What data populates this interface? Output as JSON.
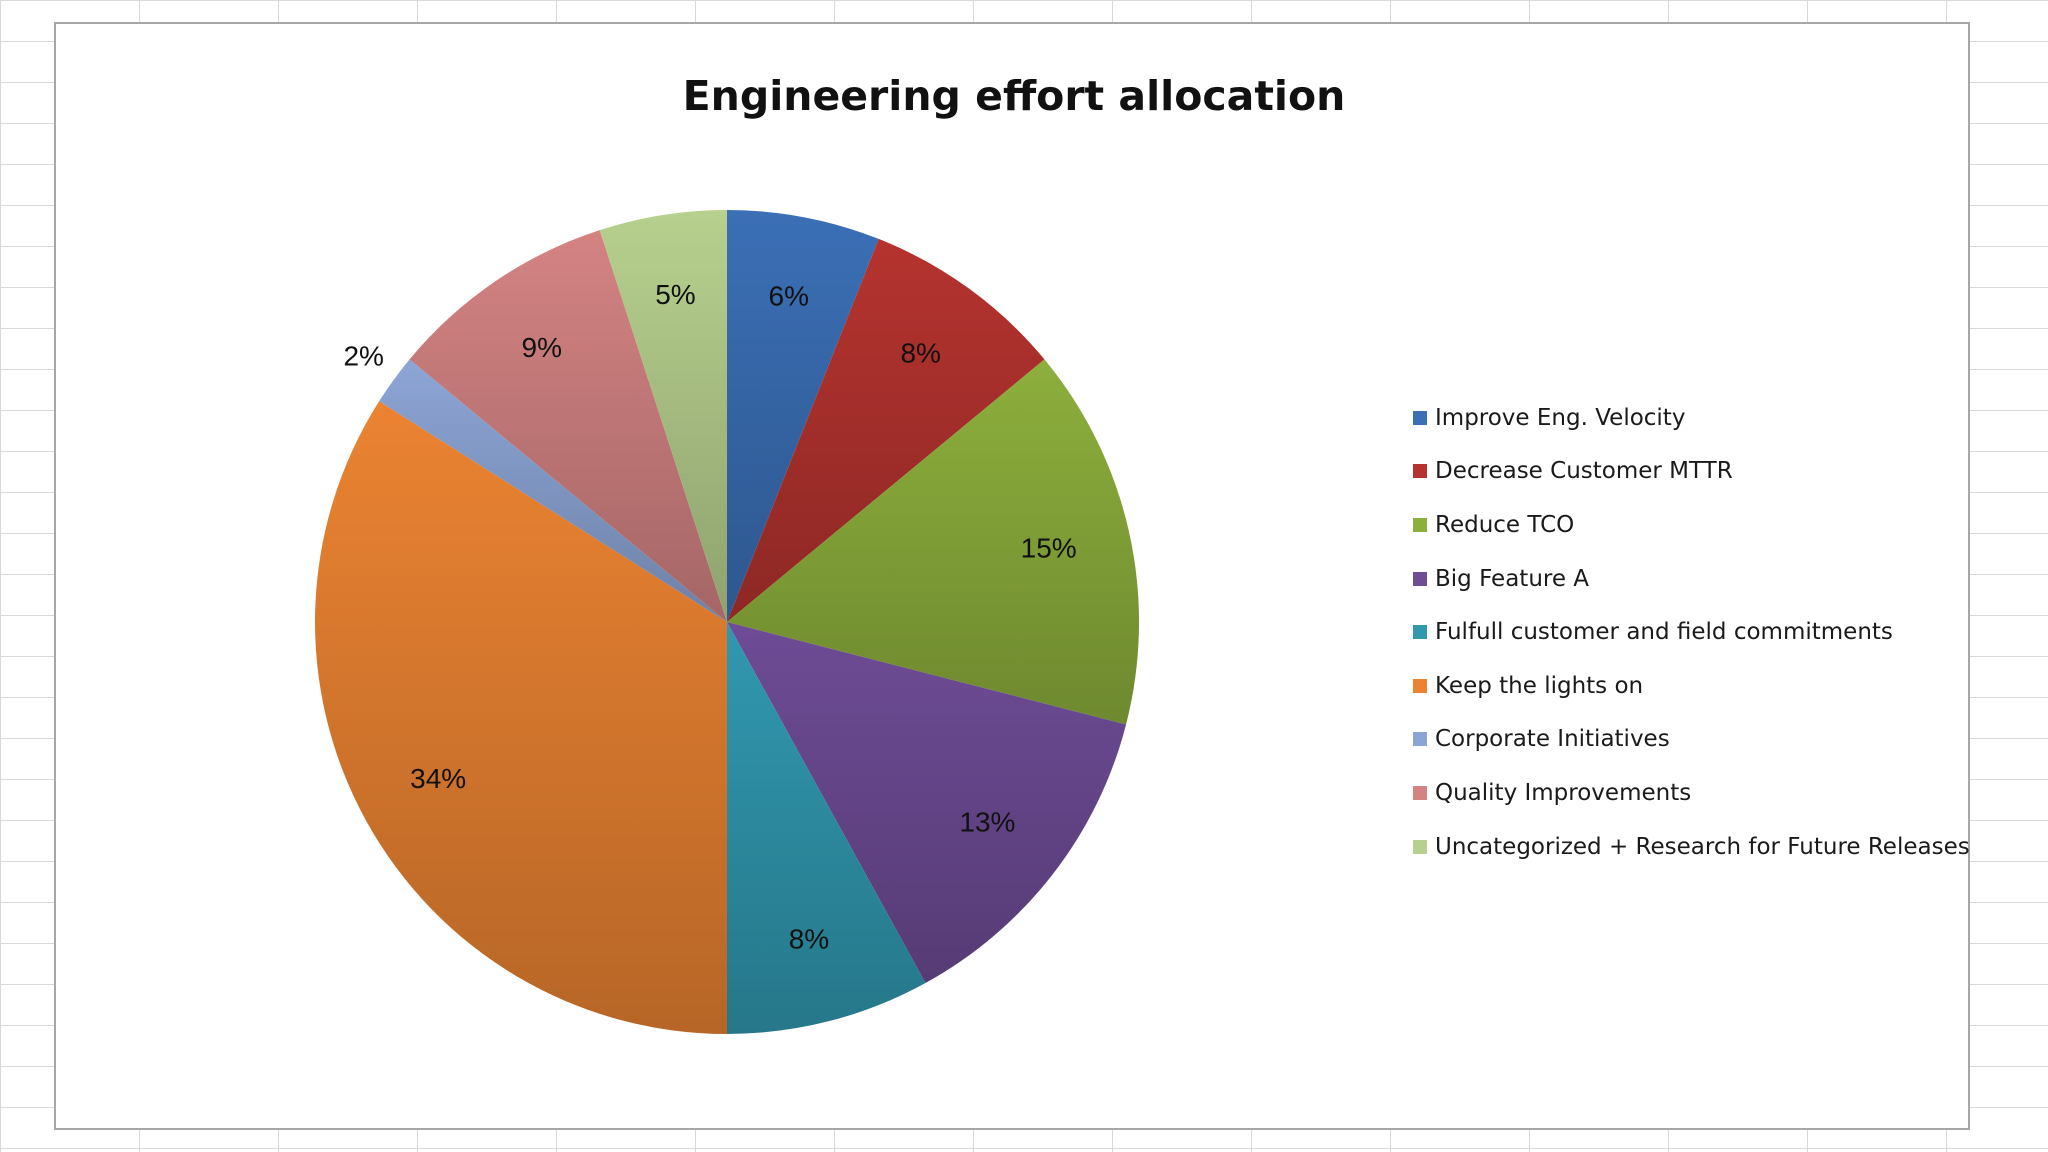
{
  "chart_data": {
    "type": "pie",
    "title": "Engineering effort allocation",
    "legend_position": "right",
    "slices": [
      {
        "label": "Improve Eng. Velocity",
        "value": 6,
        "display": "6%",
        "color": "#3B6FB6"
      },
      {
        "label": "Decrease Customer MTTR",
        "value": 8,
        "display": "8%",
        "color": "#B5332F"
      },
      {
        "label": "Reduce TCO",
        "value": 15,
        "display": "15%",
        "color": "#8DAF3C"
      },
      {
        "label": "Big Feature A",
        "value": 13,
        "display": "13%",
        "color": "#6E4C96"
      },
      {
        "label": "Fulfull customer and field commitments",
        "value": 8,
        "display": "8%",
        "color": "#3198B0"
      },
      {
        "label": "Keep the lights on",
        "value": 34,
        "display": "34%",
        "color": "#EB8332"
      },
      {
        "label": "Corporate Initiatives",
        "value": 2,
        "display": "2%",
        "color": "#8DA5D6"
      },
      {
        "label": "Quality Improvements",
        "value": 9,
        "display": "9%",
        "color": "#D48383"
      },
      {
        "label": "Uncategorized + Research for Future Releases",
        "value": 5,
        "display": "5%",
        "color": "#B7D08E"
      }
    ]
  }
}
